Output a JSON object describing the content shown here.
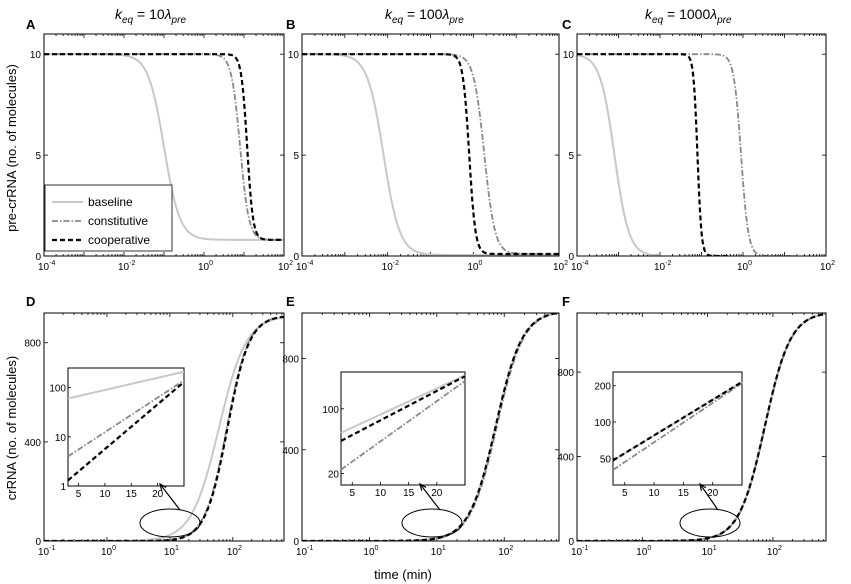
{
  "figure": {
    "titles": {
      "A": {
        "prefix": "k",
        "sub": "eq",
        "middle": " = 10",
        "lambda": "λ",
        "sub2": "pre"
      },
      "B": {
        "prefix": "k",
        "sub": "eq",
        "middle": " = 100",
        "lambda": "λ",
        "sub2": "pre"
      },
      "C": {
        "prefix": "k",
        "sub": "eq",
        "middle": " = 1000",
        "lambda": "λ",
        "sub2": "pre"
      }
    },
    "ylabel_top": "pre-crRNA (no. of molecules)",
    "ylabel_bottom": "crRNA (no. of molecules)",
    "xlabel_bottom": "time (min)",
    "legend": [
      "baseline",
      "constitutive",
      "cooperative"
    ],
    "colors": {
      "baseline": "#c8c8c8",
      "constitutive": "#888888",
      "cooperative": "#000000"
    }
  },
  "chart_data": [
    {
      "panel": "A",
      "type": "line",
      "xscale": "log",
      "xlim": [
        0.0001,
        100
      ],
      "ylim": [
        0,
        11
      ],
      "xticks": [
        {
          "v": 0.0001,
          "base": "10",
          "exp": "-4"
        },
        {
          "v": 0.01,
          "base": "10",
          "exp": "-2"
        },
        {
          "v": 1,
          "base": "10",
          "exp": "0"
        },
        {
          "v": 100,
          "base": "10",
          "exp": "2"
        }
      ],
      "yticks": [
        {
          "v": 0,
          "label": "0"
        },
        {
          "v": 5,
          "label": "5"
        },
        {
          "v": 10,
          "label": "10"
        }
      ],
      "series": [
        {
          "name": "baseline",
          "model": "decay",
          "y0": 10,
          "yinf": 0.8,
          "t50": 0.1,
          "slope": 2.2
        },
        {
          "name": "constitutive",
          "model": "decay",
          "y0": 10,
          "yinf": 0.8,
          "t50": 8,
          "slope": 4
        },
        {
          "name": "cooperative",
          "model": "decay",
          "y0": 10,
          "yinf": 0.8,
          "t50": 12,
          "slope": 6
        }
      ]
    },
    {
      "panel": "B",
      "type": "line",
      "xscale": "log",
      "xlim": [
        0.0001,
        100
      ],
      "ylim": [
        0,
        11
      ],
      "xticks": [
        {
          "v": 0.0001,
          "base": "10",
          "exp": "-4"
        },
        {
          "v": 0.01,
          "base": "10",
          "exp": "-2"
        },
        {
          "v": 1,
          "base": "10",
          "exp": "0"
        },
        {
          "v": 100,
          "base": "10",
          "exp": "2"
        }
      ],
      "yticks": [
        {
          "v": 0,
          "label": "0"
        },
        {
          "v": 5,
          "label": "5"
        },
        {
          "v": 10,
          "label": "10"
        }
      ],
      "series": [
        {
          "name": "baseline",
          "model": "decay",
          "y0": 10,
          "yinf": 0.05,
          "t50": 0.008,
          "slope": 2.3
        },
        {
          "name": "constitutive",
          "model": "decay",
          "y0": 10,
          "yinf": 0.1,
          "t50": 1.8,
          "slope": 3.5
        },
        {
          "name": "cooperative",
          "model": "decay",
          "y0": 10,
          "yinf": 0.1,
          "t50": 0.8,
          "slope": 6
        }
      ]
    },
    {
      "panel": "C",
      "type": "line",
      "xscale": "log",
      "xlim": [
        0.0001,
        100
      ],
      "ylim": [
        0,
        11
      ],
      "xticks": [
        {
          "v": 0.0001,
          "base": "10",
          "exp": "-4"
        },
        {
          "v": 0.01,
          "base": "10",
          "exp": "-2"
        },
        {
          "v": 1,
          "base": "10",
          "exp": "0"
        },
        {
          "v": 100,
          "base": "10",
          "exp": "2"
        }
      ],
      "yticks": [
        {
          "v": 0,
          "label": "0"
        },
        {
          "v": 5,
          "label": "5"
        },
        {
          "v": 10,
          "label": "10"
        }
      ],
      "series": [
        {
          "name": "baseline",
          "model": "decay",
          "y0": 10,
          "yinf": 0,
          "t50": 0.0008,
          "slope": 2.5,
          "xmax": 0.01
        },
        {
          "name": "constitutive",
          "model": "decay",
          "y0": 10,
          "yinf": 0,
          "t50": 0.9,
          "slope": 5,
          "xmax": 20
        },
        {
          "name": "cooperative",
          "model": "decay",
          "y0": 10,
          "yinf": 0,
          "t50": 0.08,
          "slope": 9,
          "xmax": 0.5
        }
      ]
    },
    {
      "panel": "D",
      "type": "line",
      "xscale": "log",
      "xlim": [
        0.1,
        650
      ],
      "ylim": [
        0,
        920
      ],
      "xticks": [
        {
          "v": 0.1,
          "base": "10",
          "exp": "-1"
        },
        {
          "v": 1,
          "base": "10",
          "exp": "0"
        },
        {
          "v": 10,
          "base": "10",
          "exp": "1"
        },
        {
          "v": 100,
          "base": "10",
          "exp": "2"
        }
      ],
      "yticks": [
        {
          "v": 0,
          "label": "0"
        },
        {
          "v": 400,
          "label": "400"
        },
        {
          "v": 800,
          "label": "800"
        }
      ],
      "series": [
        {
          "name": "baseline",
          "model": "growth",
          "ymax": 910,
          "t50": 60,
          "slope": 2
        },
        {
          "name": "constitutive",
          "model": "growth",
          "ymax": 910,
          "t50": 80,
          "slope": 2.5,
          "delay": 3
        },
        {
          "name": "cooperative",
          "model": "growth",
          "ymax": 910,
          "t50": 82,
          "slope": 2.5,
          "delay": 6
        }
      ],
      "inset": {
        "xscale": "linear",
        "xlim": [
          3,
          25
        ],
        "yscale": "log",
        "ylim": [
          1,
          250
        ],
        "xticks": [
          {
            "v": 5,
            "label": "5"
          },
          {
            "v": 10,
            "label": "10"
          },
          {
            "v": 15,
            "label": "15"
          },
          {
            "v": 20,
            "label": "20"
          }
        ],
        "yticks": [
          {
            "v": 1,
            "label": "1"
          },
          {
            "v": 10,
            "label": "10"
          },
          {
            "v": 100,
            "label": "100"
          }
        ],
        "series": [
          {
            "name": "baseline",
            "x": [
              3,
              25
            ],
            "y": [
              60,
              210
            ]
          },
          {
            "name": "constitutive",
            "x": [
              3,
              25
            ],
            "y": [
              4,
              140
            ]
          },
          {
            "name": "cooperative",
            "x": [
              3,
              25
            ],
            "y": [
              1.3,
              130
            ]
          }
        ]
      }
    },
    {
      "panel": "E",
      "type": "line",
      "xscale": "log",
      "xlim": [
        0.1,
        650
      ],
      "ylim": [
        0,
        1000
      ],
      "xticks": [
        {
          "v": 0.1,
          "base": "10",
          "exp": "-1"
        },
        {
          "v": 1,
          "base": "10",
          "exp": "0"
        },
        {
          "v": 10,
          "base": "10",
          "exp": "1"
        },
        {
          "v": 100,
          "base": "10",
          "exp": "2"
        }
      ],
      "yticks": [
        {
          "v": 0,
          "label": "0"
        },
        {
          "v": 400,
          "label": "400"
        },
        {
          "v": 800,
          "label": "800"
        }
      ],
      "series": [
        {
          "name": "baseline",
          "model": "growth",
          "ymax": 1010,
          "t50": 75,
          "slope": 2.2
        },
        {
          "name": "constitutive",
          "model": "growth",
          "ymax": 1010,
          "t50": 78,
          "slope": 2.2
        },
        {
          "name": "cooperative",
          "model": "growth",
          "ymax": 1010,
          "t50": 75,
          "slope": 2.2
        }
      ],
      "inset": {
        "xscale": "linear",
        "xlim": [
          3,
          25
        ],
        "yscale": "log",
        "ylim": [
          15,
          250
        ],
        "xticks": [
          {
            "v": 5,
            "label": "5"
          },
          {
            "v": 10,
            "label": "10"
          },
          {
            "v": 15,
            "label": "15"
          },
          {
            "v": 20,
            "label": "20"
          }
        ],
        "yticks": [
          {
            "v": 20,
            "label": "20"
          },
          {
            "v": 100,
            "label": "100"
          }
        ],
        "series": [
          {
            "name": "baseline",
            "x": [
              3,
              25
            ],
            "y": [
              55,
              230
            ]
          },
          {
            "name": "constitutive",
            "x": [
              3,
              25
            ],
            "y": [
              22,
              200
            ]
          },
          {
            "name": "cooperative",
            "x": [
              3,
              25
            ],
            "y": [
              45,
              225
            ]
          }
        ]
      }
    },
    {
      "panel": "F",
      "type": "line",
      "xscale": "log",
      "xlim": [
        0.1,
        650
      ],
      "ylim": [
        0,
        1080
      ],
      "xticks": [
        {
          "v": 0.1,
          "base": "10",
          "exp": "-1"
        },
        {
          "v": 1,
          "base": "10",
          "exp": "0"
        },
        {
          "v": 10,
          "base": "10",
          "exp": "1"
        },
        {
          "v": 100,
          "base": "10",
          "exp": "2"
        }
      ],
      "yticks": [
        {
          "v": 0,
          "label": "0"
        },
        {
          "v": 400,
          "label": "400"
        },
        {
          "v": 800,
          "label": "800"
        }
      ],
      "series": [
        {
          "name": "baseline",
          "model": "growth",
          "ymax": 1085,
          "t50": 75,
          "slope": 2.2
        },
        {
          "name": "constitutive",
          "model": "growth",
          "ymax": 1085,
          "t50": 76,
          "slope": 2.2
        },
        {
          "name": "cooperative",
          "model": "growth",
          "ymax": 1085,
          "t50": 75,
          "slope": 2.2
        }
      ],
      "inset": {
        "xscale": "linear",
        "xlim": [
          3,
          25
        ],
        "yscale": "log",
        "ylim": [
          30,
          260
        ],
        "xticks": [
          {
            "v": 5,
            "label": "5"
          },
          {
            "v": 10,
            "label": "10"
          },
          {
            "v": 15,
            "label": "15"
          },
          {
            "v": 20,
            "label": "20"
          }
        ],
        "yticks": [
          {
            "v": 50,
            "label": "50"
          },
          {
            "v": 100,
            "label": "100"
          },
          {
            "v": 200,
            "label": "200"
          }
        ],
        "series": [
          {
            "name": "baseline",
            "x": [
              3,
              25
            ],
            "y": [
              48,
              215
            ]
          },
          {
            "name": "constitutive",
            "x": [
              3,
              25
            ],
            "y": [
              40,
              210
            ]
          },
          {
            "name": "cooperative",
            "x": [
              3,
              25
            ],
            "y": [
              48,
              215
            ]
          }
        ]
      }
    }
  ]
}
